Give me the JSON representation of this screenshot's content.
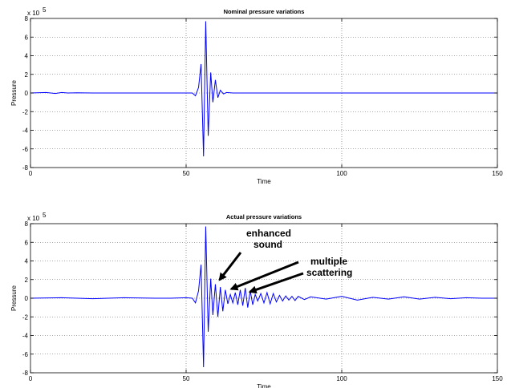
{
  "chart_data": [
    {
      "type": "line",
      "title": "Nominal pressure variations",
      "xlabel": "Time",
      "ylabel": "Pressure",
      "exponent_label": "x 10",
      "exponent_power": "5",
      "xlim": [
        0,
        150
      ],
      "ylim": [
        -8,
        8
      ],
      "scale": 100000,
      "x_ticks": [
        "0",
        "50",
        "100",
        "150"
      ],
      "y_ticks": [
        "8",
        "6",
        "4",
        "2",
        "0",
        "-2",
        "-4",
        "-6",
        "-8"
      ],
      "grid": true,
      "line_color": "#0000ff",
      "series": [
        {
          "x": [
            0,
            5,
            8,
            10,
            12,
            15,
            20,
            25,
            30,
            35,
            40,
            45,
            50,
            52,
            53,
            54,
            54.8,
            55.6,
            56.3,
            57.1,
            57.9,
            58.6,
            59.4,
            60.2,
            61,
            62,
            63,
            65,
            70,
            80,
            90,
            100,
            110,
            120,
            130,
            140,
            150
          ],
          "y": [
            0,
            0.05,
            -0.05,
            0.05,
            0,
            0.02,
            0,
            0,
            0,
            0,
            0,
            0,
            0,
            0,
            -0.3,
            0.6,
            3.1,
            -6.8,
            7.7,
            -4.6,
            2.2,
            -1.0,
            1.4,
            -0.5,
            0.3,
            -0.1,
            0.05,
            0,
            0,
            0,
            0,
            0,
            0,
            0,
            0,
            0,
            0
          ]
        }
      ]
    },
    {
      "type": "line",
      "title": "Actual pressure variations",
      "xlabel": "Time",
      "ylabel": "Pressure",
      "exponent_label": "x 10",
      "exponent_power": "5",
      "xlim": [
        0,
        150
      ],
      "ylim": [
        -8,
        8
      ],
      "scale": 100000,
      "x_ticks": [
        "0",
        "50",
        "100",
        "150"
      ],
      "y_ticks": [
        "8",
        "6",
        "4",
        "2",
        "0",
        "-2",
        "-4",
        "-6",
        "-8"
      ],
      "grid": true,
      "line_color": "#0000ff",
      "series": [
        {
          "x": [
            0,
            10,
            20,
            30,
            40,
            45,
            50,
            52,
            53,
            54,
            54.8,
            55.6,
            56.3,
            57.1,
            57.9,
            58.6,
            59.4,
            60.2,
            61,
            61.8,
            62.6,
            63.4,
            64.2,
            65,
            65.8,
            66.6,
            67.4,
            68.2,
            69,
            69.8,
            70.6,
            71.4,
            72.2,
            73,
            74,
            75,
            76,
            77,
            78,
            79,
            80,
            81,
            82,
            83,
            84,
            85,
            86,
            88,
            90,
            95,
            100,
            105,
            110,
            115,
            120,
            125,
            130,
            135,
            140,
            145,
            150
          ],
          "y": [
            0,
            0.05,
            -0.05,
            0.05,
            0,
            0,
            0.05,
            0,
            -0.5,
            0.8,
            3.6,
            -7.4,
            7.7,
            -3.6,
            2.1,
            -1.8,
            1.5,
            -2.0,
            1.2,
            -1.4,
            0.9,
            -0.6,
            0.4,
            -0.5,
            0.6,
            -0.7,
            0.9,
            -0.8,
            1.1,
            -1.0,
            0.8,
            -0.7,
            0.4,
            -0.3,
            0.5,
            -0.5,
            0.6,
            -0.6,
            0.5,
            -0.4,
            0.3,
            -0.3,
            0.25,
            -0.2,
            0.2,
            -0.25,
            0.2,
            -0.15,
            0.15,
            -0.1,
            0.2,
            -0.2,
            0.1,
            -0.1,
            0.15,
            -0.1,
            0.1,
            -0.05,
            0.05,
            0,
            0
          ]
        }
      ],
      "annotations": [
        {
          "lines": [
            "enhanced",
            "sound"
          ],
          "target": [
            60,
            1.8
          ]
        },
        {
          "lines": [
            "multiple",
            "scattering"
          ],
          "targets": [
            [
              64,
              0.9
            ],
            [
              70,
              0.6
            ]
          ]
        }
      ]
    }
  ]
}
